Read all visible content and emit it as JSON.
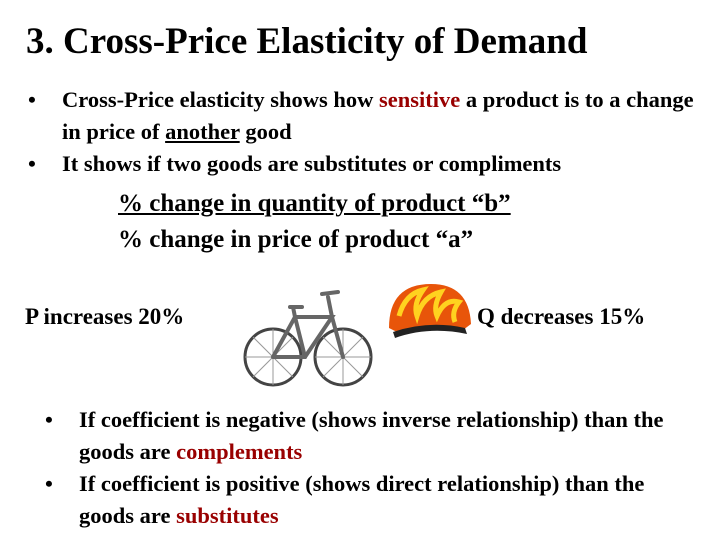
{
  "title": "3. Cross-Price Elasticity of Demand",
  "bullets": [
    [
      "Cross-Price elasticity shows how ",
      "sensitive",
      " a product is to a change in price of ",
      "another",
      " good"
    ],
    [
      "It shows if two goods are substitutes or compliments"
    ]
  ],
  "formula": {
    "numerator": "% change in quantity of product “b”",
    "denominator": "% change in price of product “a”"
  },
  "left_label": "P increases 20%",
  "right_label": "Q decreases 15%",
  "bottom_bullets": [
    [
      "If coefficient is negative (shows inverse relationship) than the goods are ",
      "complements"
    ],
    [
      "If coefficient is positive (shows direct relationship) than the goods are ",
      "substitutes"
    ]
  ]
}
